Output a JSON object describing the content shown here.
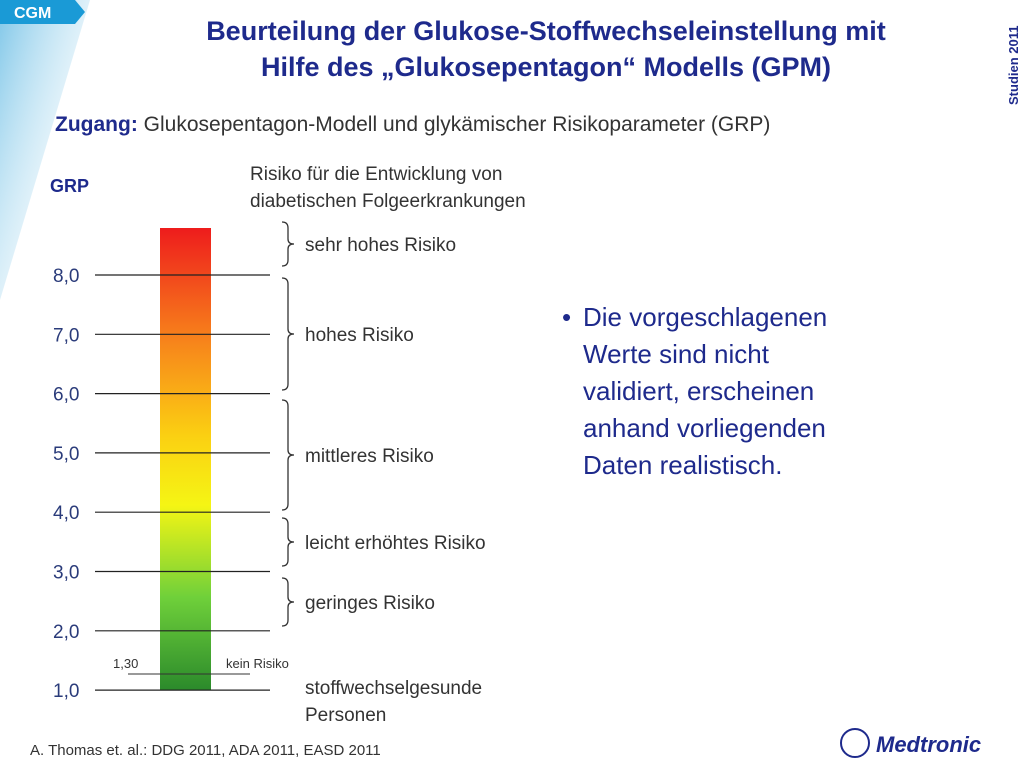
{
  "badge": "CGM",
  "side_label": "Studien 2011",
  "title": [
    "Beurteilung der Glukose-Stoffwechseleinstellung mit",
    "Hilfe des „Glukosepentagon“ Modells (GPM)"
  ],
  "subtitle": {
    "label": "Zugang:",
    "text": "Glukosepentagon-Modell und glykämischer Risikoparameter (GRP)"
  },
  "axis_label": "GRP",
  "risk_header": [
    "Risiko für die Entwicklung von",
    "diabetischen Folgeerkrankungen"
  ],
  "scale_labels": [
    "8,0",
    "7,0",
    "6,0",
    "5,0",
    "4,0",
    "3,0",
    "2,0",
    "1,0"
  ],
  "marker": {
    "value_label": "1,30",
    "text": "kein Risiko"
  },
  "risk_levels": [
    "sehr hohes Risiko",
    "hohes Risiko",
    "mittleres Risiko",
    "leicht erhöhtes Risiko",
    "geringes Risiko"
  ],
  "healthy": [
    "stoffwechselgesunde",
    "Personen"
  ],
  "bullet": [
    "Die vorgeschlagenen",
    "Werte sind nicht",
    "validiert, erscheinen",
    "anhand vorliegenden",
    "Daten realistisch."
  ],
  "footer": "A. Thomas et. al.: DDG 2011, ADA  2011, EASD 2011",
  "logo": "Medtronic"
}
